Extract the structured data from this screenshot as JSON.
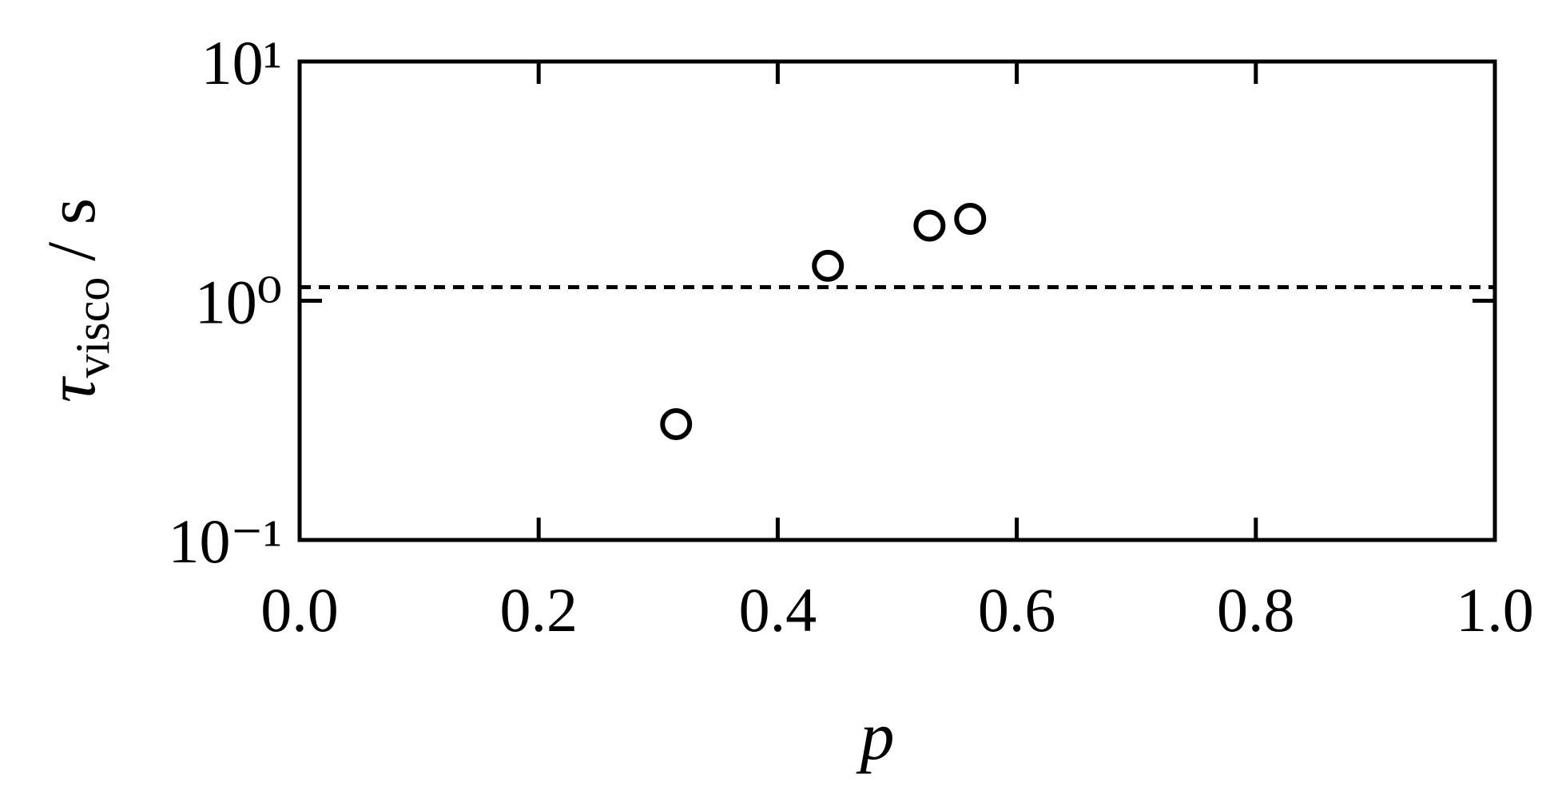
{
  "chart_data": {
    "type": "scatter",
    "x": [
      0.315,
      0.442,
      0.527,
      0.561
    ],
    "values": [
      0.305,
      1.4,
      2.06,
      2.2
    ],
    "color": "#000000",
    "xlabel": "p",
    "ylabel": [
      "τ",
      "visco",
      "/ s"
    ],
    "xlim": [
      0,
      1
    ],
    "xticks": [
      {
        "value": 0,
        "label": "0.0"
      },
      0.2,
      0.4,
      0.6,
      0.8,
      {
        "value": 1,
        "label": "1.0"
      }
    ],
    "ylim": [
      0.1,
      10
    ],
    "yticks": [
      {
        "value": 0.1,
        "label": "10⁻¹"
      },
      {
        "value": 1,
        "label": "10⁰"
      },
      {
        "value": 10,
        "label": "10¹"
      }
    ],
    "ylog": true,
    "reference_line": {
      "y": 1.14,
      "style": "dashed"
    }
  }
}
